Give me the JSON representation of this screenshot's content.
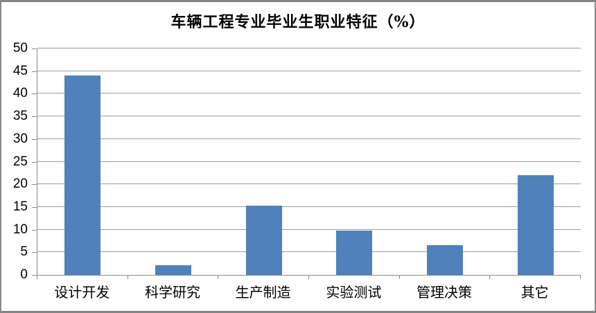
{
  "chart_data": {
    "type": "bar",
    "title": "车辆工程专业毕业生职业特征（%）",
    "categories": [
      "设计开发",
      "科学研究",
      "生产制造",
      "实验测试",
      "管理决策",
      "其它"
    ],
    "values": [
      44,
      2.2,
      15.3,
      9.8,
      6.6,
      22
    ],
    "xlabel": "",
    "ylabel": "",
    "ylim": [
      0,
      50
    ],
    "ytick_step": 5,
    "ytick_labels": [
      "0",
      "5",
      "10",
      "15",
      "20",
      "25",
      "30",
      "35",
      "40",
      "45",
      "50"
    ],
    "grid": "horizontal-on",
    "legend": "none",
    "bar_color": "#4F81BD",
    "gridline_color": "#9B9B9B",
    "axis_color": "#8A8A8A",
    "frame_border_color": "#848484",
    "background_color": "#FFFFFF",
    "title_color": "#000000"
  }
}
